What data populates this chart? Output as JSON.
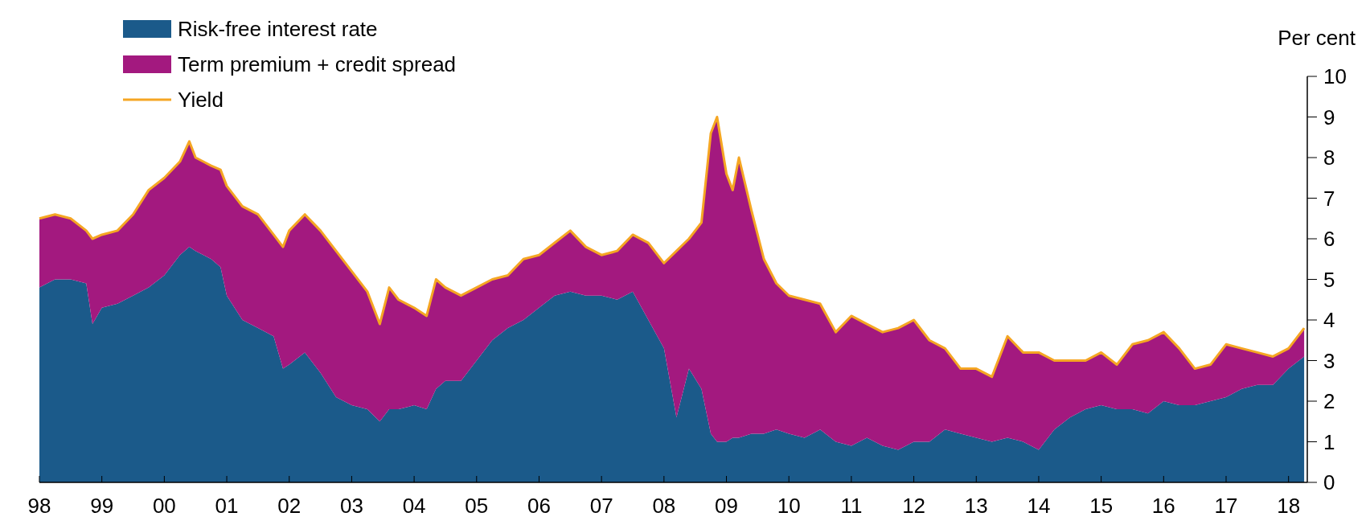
{
  "chart_data": {
    "type": "area",
    "stacked": true,
    "ylabel": "Per cent",
    "legend": "top left",
    "x": [
      1998,
      1998.25,
      1998.5,
      1998.75,
      1998.85,
      1999,
      1999.25,
      1999.5,
      1999.75,
      2000,
      2000.25,
      2000.4,
      2000.5,
      2000.75,
      2000.9,
      2001,
      2001.25,
      2001.5,
      2001.75,
      2001.9,
      2002,
      2002.25,
      2002.5,
      2002.75,
      2003,
      2003.25,
      2003.45,
      2003.6,
      2003.75,
      2004,
      2004.2,
      2004.35,
      2004.5,
      2004.75,
      2005,
      2005.25,
      2005.5,
      2005.75,
      2006,
      2006.25,
      2006.5,
      2006.75,
      2007,
      2007.25,
      2007.5,
      2007.75,
      2008,
      2008.2,
      2008.4,
      2008.6,
      2008.75,
      2008.85,
      2009,
      2009.1,
      2009.2,
      2009.4,
      2009.6,
      2009.8,
      2010,
      2010.25,
      2010.5,
      2010.75,
      2011,
      2011.25,
      2011.5,
      2011.75,
      2012,
      2012.25,
      2012.5,
      2012.75,
      2013,
      2013.25,
      2013.5,
      2013.75,
      2014,
      2014.25,
      2014.5,
      2014.75,
      2015,
      2015.25,
      2015.5,
      2015.75,
      2016,
      2016.25,
      2016.5,
      2016.75,
      2017,
      2017.25,
      2017.5,
      2017.75,
      2018,
      2018.25
    ],
    "xlim": [
      1998,
      2018.3
    ],
    "xticks": [
      {
        "value": 1998,
        "label": "98"
      },
      {
        "value": 1999,
        "label": "99"
      },
      {
        "value": 2000,
        "label": "00"
      },
      {
        "value": 2001,
        "label": "01"
      },
      {
        "value": 2002,
        "label": "02"
      },
      {
        "value": 2003,
        "label": "03"
      },
      {
        "value": 2004,
        "label": "04"
      },
      {
        "value": 2005,
        "label": "05"
      },
      {
        "value": 2006,
        "label": "06"
      },
      {
        "value": 2007,
        "label": "07"
      },
      {
        "value": 2008,
        "label": "08"
      },
      {
        "value": 2009,
        "label": "09"
      },
      {
        "value": 2010,
        "label": "10"
      },
      {
        "value": 2011,
        "label": "11"
      },
      {
        "value": 2012,
        "label": "12"
      },
      {
        "value": 2013,
        "label": "13"
      },
      {
        "value": 2014,
        "label": "14"
      },
      {
        "value": 2015,
        "label": "15"
      },
      {
        "value": 2016,
        "label": "16"
      },
      {
        "value": 2017,
        "label": "17"
      },
      {
        "value": 2018,
        "label": "18"
      }
    ],
    "ylim": [
      0,
      10
    ],
    "yticks": [
      0,
      1,
      2,
      3,
      4,
      5,
      6,
      7,
      8,
      9,
      10
    ],
    "series": [
      {
        "name": "Risk-free interest rate",
        "type": "area",
        "color": "#1b5a8a",
        "values": [
          4.8,
          5.0,
          5.0,
          4.9,
          3.9,
          4.3,
          4.4,
          4.6,
          4.8,
          5.1,
          5.6,
          5.8,
          5.7,
          5.5,
          5.3,
          4.6,
          4.0,
          3.8,
          3.6,
          2.8,
          2.9,
          3.2,
          2.7,
          2.1,
          1.9,
          1.8,
          1.5,
          1.8,
          1.8,
          1.9,
          1.8,
          2.3,
          2.5,
          2.5,
          3.0,
          3.5,
          3.8,
          4.0,
          4.3,
          4.6,
          4.7,
          4.6,
          4.6,
          4.5,
          4.7,
          4.0,
          3.3,
          1.6,
          2.8,
          2.3,
          1.2,
          1.0,
          1.0,
          1.1,
          1.1,
          1.2,
          1.2,
          1.3,
          1.2,
          1.1,
          1.3,
          1.0,
          0.9,
          1.1,
          0.9,
          0.8,
          1.0,
          1.0,
          1.3,
          1.2,
          1.1,
          1.0,
          1.1,
          1.0,
          0.8,
          1.3,
          1.6,
          1.8,
          1.9,
          1.8,
          1.8,
          1.7,
          2.0,
          1.9,
          1.9,
          2.0,
          2.1,
          2.3,
          2.4,
          2.4,
          2.8,
          3.1
        ]
      },
      {
        "name": "Term premium + credit spread",
        "type": "area",
        "color": "#a3197f",
        "values": [
          1.7,
          1.6,
          1.5,
          1.3,
          2.1,
          1.8,
          1.8,
          2.0,
          2.4,
          2.4,
          2.3,
          2.6,
          2.3,
          2.3,
          2.4,
          2.7,
          2.8,
          2.8,
          2.5,
          3.0,
          3.3,
          3.4,
          3.5,
          3.6,
          3.3,
          2.9,
          2.4,
          3.0,
          2.7,
          2.4,
          2.3,
          2.7,
          2.3,
          2.1,
          1.8,
          1.5,
          1.3,
          1.5,
          1.3,
          1.3,
          1.5,
          1.2,
          1.0,
          1.2,
          1.4,
          1.9,
          2.1,
          4.1,
          3.2,
          4.1,
          7.4,
          8.0,
          6.6,
          6.1,
          6.9,
          5.5,
          4.3,
          3.6,
          3.4,
          3.4,
          3.1,
          2.7,
          3.2,
          2.8,
          2.8,
          3.0,
          3.0,
          2.5,
          2.0,
          1.6,
          1.7,
          1.6,
          2.5,
          2.2,
          2.4,
          1.7,
          1.4,
          1.2,
          1.3,
          1.1,
          1.6,
          1.8,
          1.7,
          1.4,
          0.9,
          0.9,
          1.3,
          1.0,
          0.8,
          0.7,
          0.5,
          0.7
        ]
      },
      {
        "name": "Yield",
        "type": "line",
        "color": "#f5a623",
        "values": [
          6.5,
          6.6,
          6.5,
          6.2,
          6.0,
          6.1,
          6.2,
          6.6,
          7.2,
          7.5,
          7.9,
          8.4,
          8.0,
          7.8,
          7.7,
          7.3,
          6.8,
          6.6,
          6.1,
          5.8,
          6.2,
          6.6,
          6.2,
          5.7,
          5.2,
          4.7,
          3.9,
          4.8,
          4.5,
          4.3,
          4.1,
          5.0,
          4.8,
          4.6,
          4.8,
          5.0,
          5.1,
          5.5,
          5.6,
          5.9,
          6.2,
          5.8,
          5.6,
          5.7,
          6.1,
          5.9,
          5.4,
          5.7,
          6.0,
          6.4,
          8.6,
          9.0,
          7.6,
          7.2,
          8.0,
          6.7,
          5.5,
          4.9,
          4.6,
          4.5,
          4.4,
          3.7,
          4.1,
          3.9,
          3.7,
          3.8,
          4.0,
          3.5,
          3.3,
          2.8,
          2.8,
          2.6,
          3.6,
          3.2,
          3.2,
          3.0,
          3.0,
          3.0,
          3.2,
          2.9,
          3.4,
          3.5,
          3.7,
          3.3,
          2.8,
          2.9,
          3.4,
          3.3,
          3.2,
          3.1,
          3.3,
          3.8
        ]
      }
    ]
  }
}
